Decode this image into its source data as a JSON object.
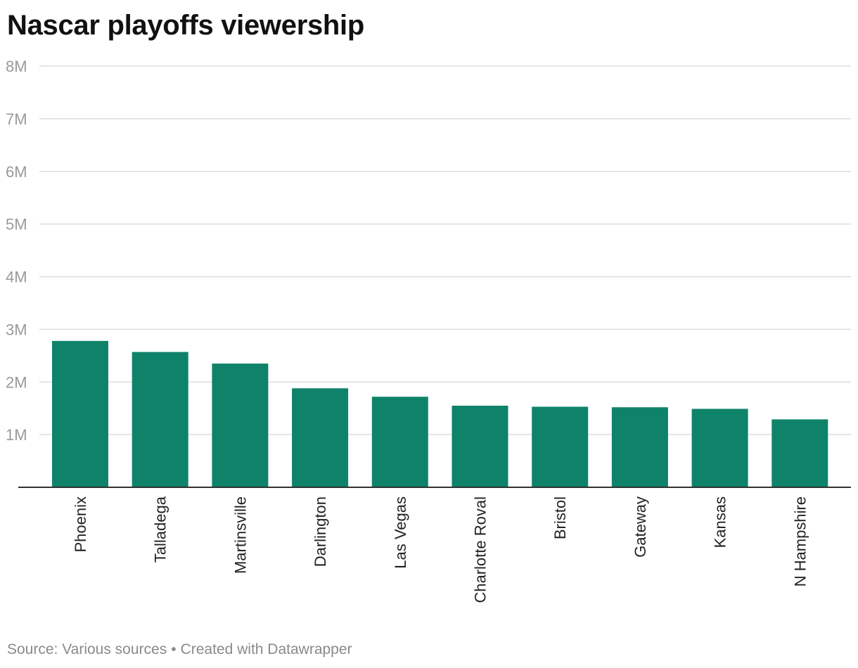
{
  "chart_data": {
    "type": "bar",
    "title": "Nascar playoffs viewership",
    "categories": [
      "Phoenix",
      "Talladega",
      "Martinsville",
      "Darlington",
      "Las Vegas",
      "Charlotte Roval",
      "Bristol",
      "Gateway",
      "Kansas",
      "N Hampshire"
    ],
    "values": [
      2.78,
      2.57,
      2.35,
      1.88,
      1.72,
      1.55,
      1.53,
      1.52,
      1.49,
      1.29
    ],
    "value_unit": "millions of viewers",
    "ylim": [
      0,
      8
    ],
    "yticks": [
      1,
      2,
      3,
      4,
      5,
      6,
      7,
      8
    ],
    "ytick_labels": [
      "1M",
      "2M",
      "3M",
      "4M",
      "5M",
      "6M",
      "7M",
      "8M"
    ],
    "xlabel": "",
    "ylabel": "",
    "grid": true,
    "legend": "none",
    "bar_color": "#0e836a",
    "grid_color": "#dddddd",
    "baseline_color": "#333333"
  },
  "footer": {
    "source": "Source: Various sources",
    "separator": "•",
    "credit": "Created with Datawrapper"
  }
}
